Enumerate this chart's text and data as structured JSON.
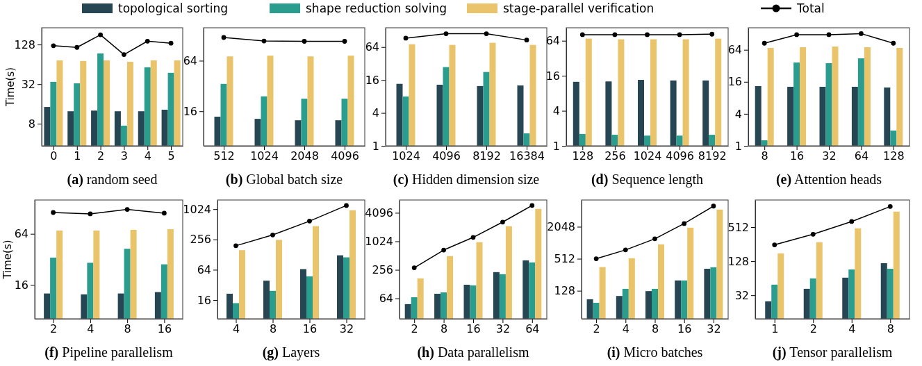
{
  "chart_data": [
    {
      "type": "bar",
      "title": "(a) random seed",
      "ylabel": "Time(s)",
      "log": "y",
      "legend": "top",
      "marker": "circle",
      "grid": false,
      "categories": [
        "0",
        "1",
        "2",
        "3",
        "4",
        "5"
      ],
      "ylim": [
        3.7,
        230
      ],
      "yticks": [
        8,
        32,
        128
      ],
      "series": [
        {
          "name": "topological sorting",
          "color": "#264653",
          "values": [
            14.4,
            12.4,
            12.7,
            12.4,
            12.4,
            13.1
          ]
        },
        {
          "name": "shape reduction solving",
          "color": "#2a9d8f",
          "values": [
            34.7,
            33.0,
            93.9,
            7.5,
            57.7,
            47.6
          ]
        },
        {
          "name": "stage-parallel verification",
          "color": "#e9c46a",
          "values": [
            73.6,
            72.0,
            73.6,
            70.0,
            73.6,
            73.6
          ]
        },
        {
          "name": "Total",
          "type": "line",
          "color": "#000000",
          "values": [
            122.8,
            115.8,
            180,
            90,
            144,
            134
          ]
        }
      ]
    },
    {
      "type": "bar",
      "title": "(b) Global batch size",
      "log": "y",
      "marker": "circle",
      "grid": false,
      "categories": [
        "512",
        "1024",
        "2048",
        "4096"
      ],
      "ylim": [
        6.2,
        158
      ],
      "yticks": [
        16,
        64
      ],
      "series": [
        {
          "color": "#264653",
          "values": [
            13.8,
            13.0,
            12.5,
            12.5
          ]
        },
        {
          "color": "#2a9d8f",
          "values": [
            33.9,
            24.1,
            22.6,
            22.6
          ]
        },
        {
          "color": "#e9c46a",
          "values": [
            72.1,
            73.6,
            72.1,
            73.6
          ]
        },
        {
          "type": "line",
          "color": "#000000",
          "values": [
            121,
            110,
            109,
            109
          ]
        }
      ]
    },
    {
      "type": "bar",
      "title": "(c) Hidden dimension size",
      "log": "y",
      "marker": "circle",
      "grid": false,
      "categories": [
        "1024",
        "4096",
        "8192",
        "16384"
      ],
      "ylim": [
        1,
        144
      ],
      "yticks": [
        1,
        4,
        16,
        64
      ],
      "series": [
        {
          "color": "#264653",
          "values": [
            13.6,
            13.1,
            12.4,
            12.7
          ]
        },
        {
          "color": "#2a9d8f",
          "values": [
            8.0,
            27.5,
            22.4,
            1.69
          ]
        },
        {
          "color": "#e9c46a",
          "values": [
            72,
            70,
            76.6,
            70
          ]
        },
        {
          "type": "line",
          "color": "#000000",
          "values": [
            93,
            112,
            112,
            86
          ]
        }
      ]
    },
    {
      "type": "bar",
      "title": "(d) Sequence length",
      "log": "y",
      "marker": "circle",
      "grid": false,
      "categories": [
        "128",
        "256",
        "1024",
        "4096",
        "8192"
      ],
      "ylim": [
        1,
        107
      ],
      "yticks": [
        1,
        4,
        16,
        64
      ],
      "series": [
        {
          "color": "#264653",
          "values": [
            12.6,
            12.8,
            13.6,
            13.3,
            13.3
          ]
        },
        {
          "color": "#2a9d8f",
          "values": [
            1.6,
            1.55,
            1.5,
            1.5,
            1.55
          ]
        },
        {
          "color": "#e9c46a",
          "values": [
            69.7,
            67.8,
            67.8,
            67.8,
            69.7
          ]
        },
        {
          "type": "line",
          "color": "#000000",
          "values": [
            81.5,
            81.5,
            81.5,
            81.5,
            83
          ]
        }
      ]
    },
    {
      "type": "bar",
      "title": "(e) Attention heads",
      "log": "y",
      "marker": "circle",
      "grid": false,
      "categories": [
        "8",
        "16",
        "32",
        "64",
        "128"
      ],
      "ylim": [
        1,
        166
      ],
      "yticks": [
        1,
        4,
        16,
        64
      ],
      "series": [
        {
          "color": "#264653",
          "values": [
            13.3,
            12.9,
            12.9,
            12.9,
            12.5
          ]
        },
        {
          "color": "#2a9d8f",
          "values": [
            1.27,
            36.9,
            35.8,
            44.2,
            1.94
          ]
        },
        {
          "color": "#e9c46a",
          "values": [
            69.4,
            71.5,
            73.7,
            71.5,
            69.4
          ]
        },
        {
          "type": "line",
          "color": "#000000",
          "values": [
            85,
            123,
            123,
            129,
            85
          ]
        }
      ]
    },
    {
      "type": "bar",
      "title": "(f) Pipeline parallelism",
      "ylabel": "Time(s)",
      "log": "y",
      "marker": "circle",
      "grid": false,
      "categories": [
        "2",
        "4",
        "8",
        "16"
      ],
      "ylim": [
        6.4,
        160
      ],
      "yticks": [
        16,
        64
      ],
      "series": [
        {
          "color": "#264653",
          "values": [
            12.7,
            12.4,
            12.7,
            13.2
          ]
        },
        {
          "color": "#2a9d8f",
          "values": [
            33.6,
            29.2,
            42.7,
            28.0
          ]
        },
        {
          "color": "#e9c46a",
          "values": [
            70,
            70,
            71.2,
            72.5
          ]
        },
        {
          "type": "line",
          "color": "#000000",
          "values": [
            114,
            110,
            124,
            112
          ]
        }
      ]
    },
    {
      "type": "bar",
      "title": "(g) Layers",
      "log": "y",
      "marker": "circle",
      "grid": false,
      "categories": [
        "4",
        "8",
        "16",
        "32"
      ],
      "ylim": [
        6.8,
        1556
      ],
      "yticks": [
        16,
        64,
        256,
        1024
      ],
      "series": [
        {
          "color": "#264653",
          "values": [
            21.4,
            38.9,
            66,
            124
          ]
        },
        {
          "color": "#2a9d8f",
          "values": [
            13.9,
            24.4,
            47.4,
            113
          ]
        },
        {
          "color": "#e9c46a",
          "values": [
            157,
            251,
            471,
            975
          ]
        },
        {
          "type": "line",
          "color": "#000000",
          "values": [
            192,
            315,
            593,
            1210
          ]
        }
      ]
    },
    {
      "type": "bar",
      "title": "(h) Data parallelism",
      "log": "y",
      "marker": "circle",
      "grid": false,
      "categories": [
        "2",
        "8",
        "16",
        "32",
        "64"
      ],
      "ylim": [
        23.7,
        7630
      ],
      "yticks": [
        64,
        256,
        1024,
        4096
      ],
      "series": [
        {
          "color": "#264653",
          "values": [
            48.4,
            80,
            124,
            229,
            406
          ]
        },
        {
          "color": "#2a9d8f",
          "values": [
            67.5,
            85.5,
            120,
            207,
            367
          ]
        },
        {
          "color": "#e9c46a",
          "values": [
            169,
            499,
            982,
            2130,
            4960
          ]
        },
        {
          "type": "line",
          "color": "#000000",
          "values": [
            283,
            670,
            1240,
            2610,
            5870
          ]
        }
      ]
    },
    {
      "type": "bar",
      "title": "(i) Micro batches",
      "log": "y",
      "marker": "circle",
      "grid": false,
      "categories": [
        "2",
        "4",
        "8",
        "16",
        "32"
      ],
      "ylim": [
        38,
        6520
      ],
      "yticks": [
        128,
        512,
        2048
      ],
      "series": [
        {
          "color": "#264653",
          "values": [
            88.5,
            102,
            126,
            200,
            332
          ]
        },
        {
          "color": "#2a9d8f",
          "values": [
            76,
            139,
            139,
            200,
            354
          ]
        },
        {
          "color": "#e9c46a",
          "values": [
            357,
            523,
            955,
            1965,
            4310
          ]
        },
        {
          "type": "line",
          "color": "#000000",
          "values": [
            512,
            750,
            1215,
            2350,
            5010
          ]
        }
      ]
    },
    {
      "type": "bar",
      "title": "(j) Tensor parallelism",
      "log": "y",
      "marker": "circle",
      "grid": false,
      "categories": [
        "1",
        "2",
        "4",
        "8"
      ],
      "ylim": [
        12.3,
        1543
      ],
      "yticks": [
        32,
        128,
        512
      ],
      "series": [
        {
          "color": "#264653",
          "values": [
            25,
            41.6,
            65.5,
            118
          ]
        },
        {
          "color": "#2a9d8f",
          "values": [
            49.3,
            63.6,
            91.5,
            94
          ]
        },
        {
          "color": "#e9c46a",
          "values": [
            176,
            277,
            488,
            961
          ]
        },
        {
          "type": "line",
          "color": "#000000",
          "values": [
            249,
            383,
            643,
            1184
          ]
        }
      ]
    }
  ]
}
